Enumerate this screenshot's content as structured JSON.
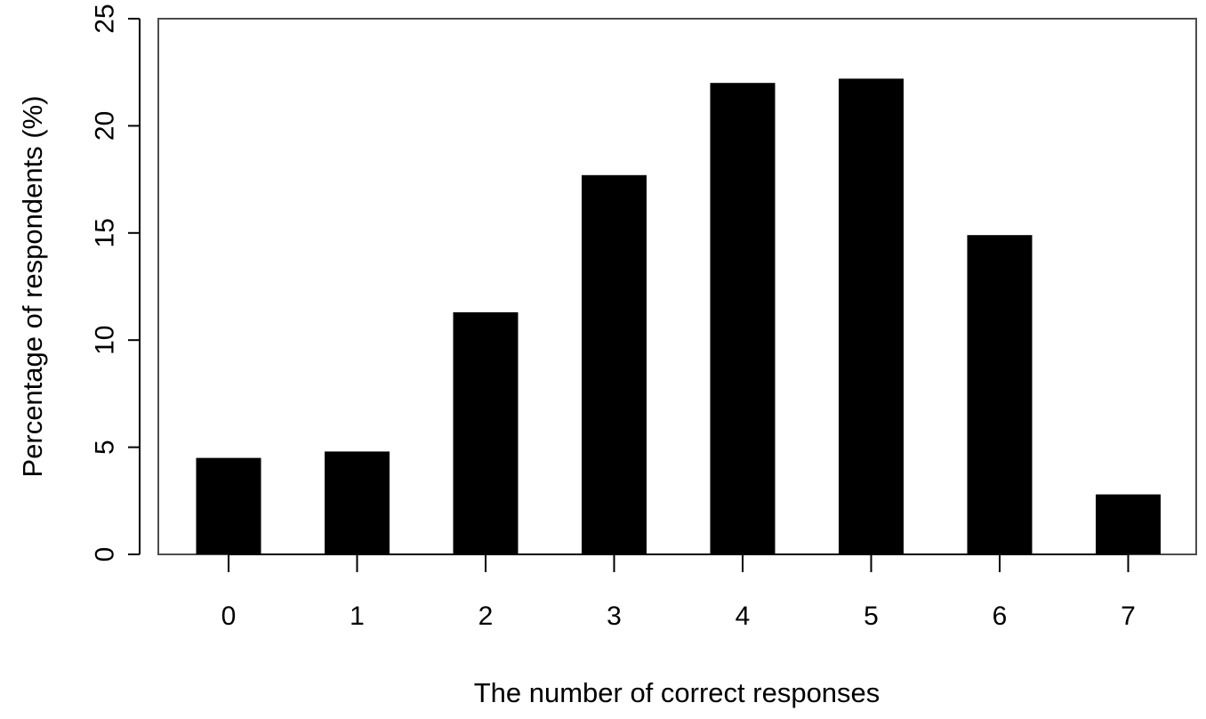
{
  "chart_data": {
    "type": "bar",
    "title": "",
    "xlabel": "The number of correct responses",
    "ylabel": "Percentage of respondents (%)",
    "categories": [
      "0",
      "1",
      "2",
      "3",
      "4",
      "5",
      "6",
      "7"
    ],
    "values": [
      4.5,
      4.8,
      11.3,
      17.7,
      22.0,
      22.2,
      14.9,
      2.8
    ],
    "ylim": [
      0,
      25
    ],
    "yticks": [
      0,
      5,
      10,
      15,
      20,
      25
    ],
    "grid": false,
    "legend": "none",
    "bar_color": "#000000",
    "axis_color": "#000000",
    "frame_color": "#4d4d4d"
  }
}
